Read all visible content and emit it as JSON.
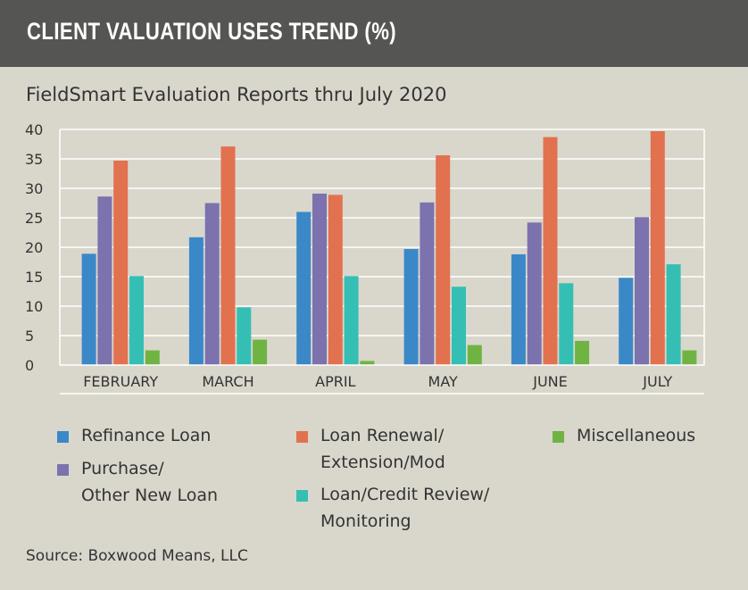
{
  "header": {
    "title": "CLIENT VALUATION USES TREND (%)"
  },
  "chart_data": {
    "type": "bar",
    "title": "CLIENT VALUATION USES TREND (%)",
    "subtitle": "FieldSmart Evaluation Reports thru July 2020",
    "categories": [
      "FEBRUARY",
      "MARCH",
      "APRIL",
      "MAY",
      "JUNE",
      "JULY"
    ],
    "ylim": [
      0,
      40
    ],
    "yticks": [
      "0",
      "5",
      "10",
      "15",
      "20",
      "25",
      "30",
      "35",
      "40"
    ],
    "grid": true,
    "legend_position": "bottom",
    "series": [
      {
        "name": "Refinance Loan",
        "color": "#3b88c8",
        "values": [
          18.9,
          21.7,
          26.0,
          19.7,
          18.8,
          14.8
        ]
      },
      {
        "name": "Purchase/ Other New Loan",
        "color": "#7b72ae",
        "values": [
          28.6,
          27.5,
          29.1,
          27.6,
          24.2,
          25.1
        ]
      },
      {
        "name": "Loan Renewal/ Extension/Mod",
        "color": "#e2714f",
        "values": [
          34.7,
          37.1,
          28.9,
          35.6,
          38.7,
          39.7
        ]
      },
      {
        "name": "Loan/Credit Review/ Monitoring",
        "color": "#35bfb4",
        "values": [
          15.1,
          9.8,
          15.1,
          13.3,
          13.9,
          17.1
        ]
      },
      {
        "name": "Miscellaneous",
        "color": "#6fb443",
        "values": [
          2.5,
          4.3,
          0.7,
          3.4,
          4.1,
          2.5
        ]
      }
    ],
    "source": "Source: Boxwood Means, LLC"
  },
  "legend": [
    {
      "label": "Refinance Loan",
      "color": "#3b88c8"
    },
    {
      "label": "Loan Renewal/\nExtension/Mod",
      "color": "#e2714f"
    },
    {
      "label": "Miscellaneous",
      "color": "#6fb443"
    },
    {
      "label": "Purchase/\nOther New Loan",
      "color": "#7b72ae"
    },
    {
      "label": "Loan/Credit Review/\nMonitoring",
      "color": "#35bfb4"
    }
  ]
}
